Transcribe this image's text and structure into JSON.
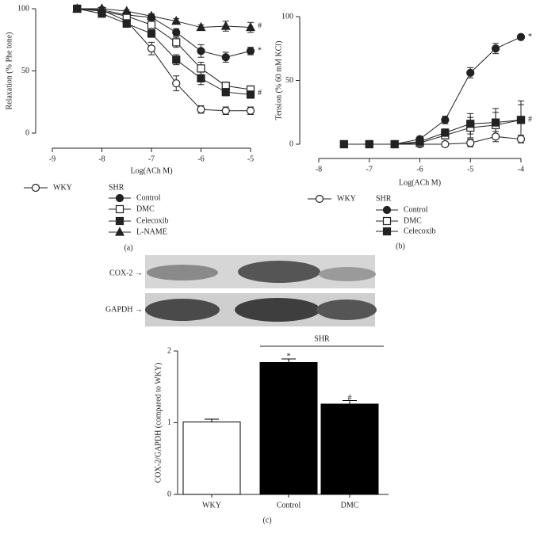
{
  "chart_data": [
    {
      "type": "line",
      "panel_label": "(a)",
      "x_label": "Log(ACh M)",
      "y_label": "Relaxation (% Phe tone)",
      "xlim": [
        -9,
        -5
      ],
      "xticks": [
        -9,
        -8,
        -7,
        -6,
        -5
      ],
      "ylim": [
        0,
        100
      ],
      "yticks": [
        0,
        50,
        100
      ],
      "x": [
        -8.5,
        -8,
        -7.5,
        -7,
        -6.5,
        -6,
        -5.5,
        -5
      ],
      "legend_group": "SHR",
      "series": [
        {
          "name": "WKY",
          "color": "#222222",
          "marker": "circle-open",
          "values": [
            100,
            99,
            90,
            68,
            40,
            19,
            18,
            18
          ],
          "errors": [
            0,
            1,
            2,
            5,
            6,
            3,
            3,
            3
          ]
        },
        {
          "name": "Control",
          "color": "#222222",
          "marker": "circle",
          "values": [
            100,
            99,
            95,
            93,
            81,
            66,
            61,
            66
          ],
          "errors": [
            0,
            1,
            2,
            2,
            3,
            5,
            4,
            3
          ]
        },
        {
          "name": "DMC",
          "color": "#222222",
          "marker": "square-open",
          "values": [
            100,
            98,
            94,
            87,
            73,
            52,
            38,
            35
          ],
          "errors": [
            0,
            1,
            2,
            3,
            4,
            5,
            3,
            3
          ]
        },
        {
          "name": "Celecoxib",
          "color": "#222222",
          "marker": "square",
          "values": [
            100,
            96,
            88,
            80,
            59,
            44,
            33,
            31
          ],
          "errors": [
            0,
            1,
            2,
            3,
            4,
            5,
            3,
            3
          ]
        },
        {
          "name": "L-NAME",
          "color": "#222222",
          "marker": "triangle",
          "values": [
            100,
            100,
            98,
            94,
            90,
            85,
            86,
            85
          ],
          "errors": [
            0,
            1,
            1,
            2,
            2,
            2,
            4,
            4
          ]
        }
      ],
      "annotations": [
        {
          "text": "#",
          "x": -5,
          "y": 86
        },
        {
          "text": "*",
          "x": -5,
          "y": 66
        },
        {
          "text": "#",
          "x": -5,
          "y": 32
        }
      ]
    },
    {
      "type": "line",
      "panel_label": "(b)",
      "x_label": "Log(ACh M)",
      "y_label": "Tension (% 60 mM KCl)",
      "xlim": [
        -8,
        -4
      ],
      "xticks": [
        -8,
        -7,
        -6,
        -5,
        -4
      ],
      "ylim": [
        0,
        100
      ],
      "yticks": [
        0,
        50,
        100
      ],
      "x": [
        -7.5,
        -7,
        -6.5,
        -6,
        -5.5,
        -5,
        -4.5,
        -4
      ],
      "legend_group": "SHR",
      "series": [
        {
          "name": "WKY",
          "color": "#222222",
          "marker": "circle-open",
          "values": [
            0,
            0,
            0,
            0,
            0,
            1,
            6,
            4
          ],
          "errors": [
            0,
            0,
            0,
            0,
            1,
            3,
            4,
            3
          ]
        },
        {
          "name": "Control",
          "color": "#222222",
          "marker": "circle",
          "values": [
            0,
            0,
            0,
            4,
            19,
            56,
            75,
            84
          ],
          "errors": [
            0,
            0,
            0,
            2,
            3,
            4,
            4,
            2
          ]
        },
        {
          "name": "DMC",
          "color": "#222222",
          "marker": "square-open",
          "values": [
            0,
            0,
            0,
            1,
            7,
            13,
            15,
            19
          ],
          "errors": [
            0,
            0,
            0,
            1,
            3,
            8,
            10,
            12
          ]
        },
        {
          "name": "Celecoxib",
          "color": "#222222",
          "marker": "square",
          "values": [
            0,
            0,
            0,
            2,
            9,
            16,
            17,
            19
          ],
          "errors": [
            0,
            0,
            0,
            1,
            3,
            8,
            11,
            15
          ]
        }
      ],
      "annotations": [
        {
          "text": "*",
          "x": -4,
          "y": 84
        },
        {
          "text": "#",
          "x": -4,
          "y": 19
        }
      ]
    },
    {
      "type": "bar",
      "panel_label": "(c)",
      "y_label": "COX-2/GAPDH (compared to WKY)",
      "blot_labels": [
        "COX-2 →",
        "GAPDH →"
      ],
      "categories": [
        "WKY",
        "Control",
        "DMC"
      ],
      "values": [
        1.01,
        1.84,
        1.26
      ],
      "errors": [
        0.04,
        0.05,
        0.05
      ],
      "colors": [
        "#ffffff",
        "#000000",
        "#000000"
      ],
      "ylim": [
        0,
        2
      ],
      "yticks": [
        0,
        1,
        2
      ],
      "group": {
        "label": "SHR",
        "categories": [
          "Control",
          "DMC"
        ]
      },
      "annotations": [
        {
          "text": "*",
          "category": "Control",
          "y": 1.92
        },
        {
          "text": "#",
          "category": "DMC",
          "y": 1.34
        }
      ]
    }
  ]
}
